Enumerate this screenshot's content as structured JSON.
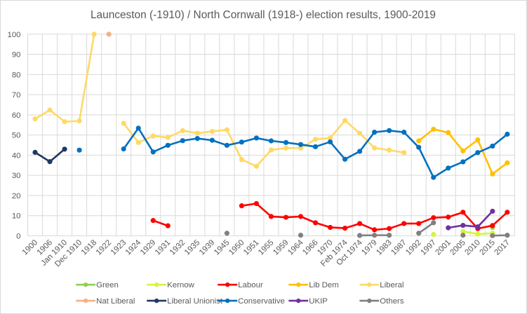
{
  "chart_data": {
    "type": "line",
    "title": "Launceston (-1910) / North Cornwall (1918-) election results, 1900-2019",
    "xlabel": "",
    "ylabel": "",
    "ylim": [
      0,
      100
    ],
    "yticks": [
      0,
      10,
      20,
      30,
      40,
      50,
      60,
      70,
      80,
      90,
      100
    ],
    "grid": true,
    "legend_position": "bottom",
    "categories": [
      "1900",
      "1906",
      "Jan 1910",
      "Dec 1910",
      "1918",
      "1922",
      "1923",
      "1924",
      "1929",
      "1931",
      "1932",
      "1935",
      "1939",
      "1945",
      "1950",
      "1951",
      "1955",
      "1959",
      "1964",
      "1966",
      "1970",
      "Feb 1974",
      "Oct 1974",
      "1979",
      "1983",
      "1987",
      "1992",
      "1997",
      "2001",
      "2005",
      "2010",
      "2015",
      "2017"
    ],
    "series": [
      {
        "name": "Green",
        "color": "#92d050",
        "values": [
          null,
          null,
          null,
          null,
          null,
          null,
          null,
          null,
          null,
          null,
          null,
          null,
          null,
          null,
          null,
          null,
          null,
          null,
          null,
          null,
          null,
          null,
          null,
          null,
          null,
          null,
          null,
          null,
          null,
          null,
          null,
          4.2,
          null
        ]
      },
      {
        "name": "Kernow",
        "color": "#d4f53c",
        "values": [
          null,
          null,
          null,
          null,
          null,
          null,
          null,
          null,
          null,
          null,
          null,
          null,
          null,
          null,
          null,
          null,
          null,
          null,
          null,
          null,
          null,
          null,
          null,
          null,
          null,
          null,
          null,
          0.7,
          null,
          2.2,
          0.9,
          1.3,
          null
        ]
      },
      {
        "name": "Labour",
        "color": "#ff0000",
        "values": [
          null,
          null,
          null,
          null,
          null,
          null,
          null,
          null,
          7.6,
          5.0,
          null,
          null,
          null,
          null,
          14.9,
          16.0,
          9.6,
          9.2,
          9.6,
          6.5,
          4.2,
          3.8,
          6.1,
          3.0,
          3.6,
          6.1,
          6.1,
          9.0,
          9.3,
          11.7,
          3.6,
          5.1,
          11.7
        ]
      },
      {
        "name": "Lib Dem",
        "color": "#ffc000",
        "values": [
          null,
          null,
          null,
          null,
          null,
          null,
          null,
          null,
          null,
          null,
          null,
          null,
          null,
          null,
          null,
          null,
          null,
          null,
          null,
          null,
          null,
          null,
          null,
          null,
          null,
          null,
          47.1,
          52.9,
          51.2,
          42.1,
          47.6,
          30.7,
          36.2
        ]
      },
      {
        "name": "Liberal",
        "color": "#ffd966",
        "values": [
          58.0,
          62.4,
          56.6,
          57.0,
          100,
          null,
          55.8,
          46.3,
          49.5,
          48.8,
          52.2,
          50.9,
          51.8,
          52.6,
          37.8,
          34.5,
          42.6,
          43.5,
          43.5,
          47.9,
          48.5,
          57.2,
          50.9,
          43.6,
          42.5,
          41.3,
          null,
          null,
          null,
          null,
          null,
          null,
          null
        ]
      },
      {
        "name": "Nat Liberal",
        "color": "#f4b183",
        "values": [
          null,
          null,
          null,
          null,
          null,
          100,
          null,
          null,
          null,
          null,
          null,
          null,
          null,
          null,
          null,
          null,
          null,
          null,
          null,
          null,
          null,
          null,
          null,
          null,
          null,
          null,
          null,
          null,
          null,
          null,
          null,
          null,
          null
        ]
      },
      {
        "name": "Liberal Unionist",
        "color": "#1f3864",
        "values": [
          41.4,
          36.8,
          43.0,
          null,
          null,
          null,
          null,
          null,
          null,
          null,
          null,
          null,
          null,
          null,
          null,
          null,
          null,
          null,
          null,
          null,
          null,
          null,
          null,
          null,
          null,
          null,
          null,
          null,
          null,
          null,
          null,
          null,
          null
        ]
      },
      {
        "name": "Conservative",
        "color": "#0070c0",
        "values": [
          null,
          null,
          null,
          42.5,
          null,
          null,
          43.1,
          53.4,
          41.6,
          44.9,
          47.2,
          48.3,
          47.4,
          44.9,
          46.5,
          48.5,
          47.1,
          46.3,
          45.3,
          44.2,
          46.6,
          38.0,
          41.9,
          51.4,
          52.2,
          51.4,
          43.9,
          29.0,
          33.6,
          36.7,
          41.3,
          44.5,
          50.4
        ]
      },
      {
        "name": "UKIP",
        "color": "#7030a0",
        "values": [
          null,
          null,
          null,
          null,
          null,
          null,
          null,
          null,
          null,
          null,
          null,
          null,
          null,
          null,
          null,
          null,
          null,
          null,
          null,
          null,
          null,
          null,
          null,
          null,
          null,
          null,
          null,
          null,
          4.0,
          5.2,
          4.5,
          12.2,
          null
        ]
      },
      {
        "name": "Others",
        "color": "#808080",
        "values": [
          null,
          null,
          null,
          null,
          null,
          null,
          null,
          null,
          null,
          null,
          null,
          null,
          null,
          1.3,
          null,
          null,
          null,
          null,
          0.3,
          null,
          null,
          null,
          0.2,
          0.3,
          0.3,
          null,
          1.3,
          6.5,
          null,
          0.3,
          null,
          0.1,
          0.3
        ]
      }
    ]
  }
}
